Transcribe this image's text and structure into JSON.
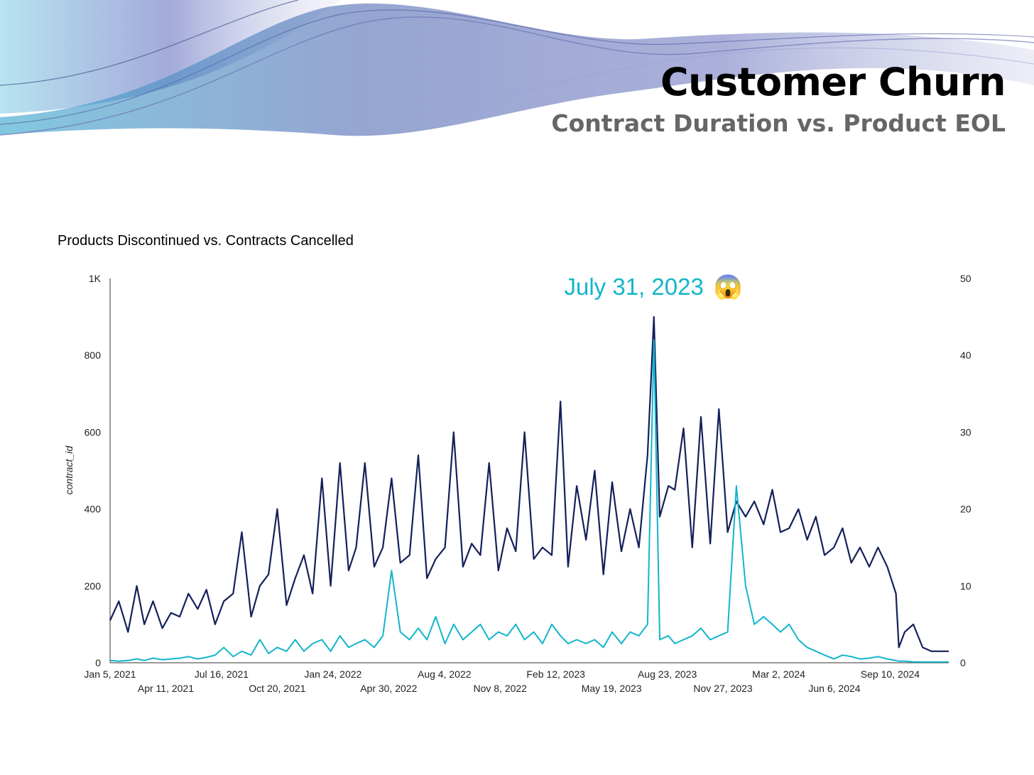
{
  "header": {
    "title": "Customer Churn",
    "subtitle": "Contract Duration vs. Product EOL"
  },
  "colors": {
    "contracts": "#13205A",
    "products": "#12B5CB",
    "accent": "#12B5CB"
  },
  "chart_data": {
    "type": "line",
    "title": "Products Discontinued vs. Contracts Cancelled",
    "ylabel": "contract_id",
    "y2label": "",
    "ylim": [
      0,
      1000
    ],
    "y2lim": [
      0,
      50
    ],
    "y_ticks": [
      "0",
      "200",
      "400",
      "600",
      "800",
      "1K"
    ],
    "y2_ticks": [
      "0",
      "10",
      "20",
      "30",
      "40",
      "50"
    ],
    "x_range": [
      "2021-01-05",
      "2024-12-20"
    ],
    "x_ticks": [
      {
        "date": "2021-01-05",
        "label": "Jan 5, 2021"
      },
      {
        "date": "2021-04-11",
        "label": "Apr 11, 2021"
      },
      {
        "date": "2021-07-16",
        "label": "Jul 16, 2021"
      },
      {
        "date": "2021-10-20",
        "label": "Oct 20, 2021"
      },
      {
        "date": "2022-01-24",
        "label": "Jan 24, 2022"
      },
      {
        "date": "2022-04-30",
        "label": "Apr 30, 2022"
      },
      {
        "date": "2022-08-04",
        "label": "Aug 4, 2022"
      },
      {
        "date": "2022-11-08",
        "label": "Nov 8, 2022"
      },
      {
        "date": "2023-02-12",
        "label": "Feb 12, 2023"
      },
      {
        "date": "2023-05-19",
        "label": "May 19, 2023"
      },
      {
        "date": "2023-08-23",
        "label": "Aug 23, 2023"
      },
      {
        "date": "2023-11-27",
        "label": "Nov 27, 2023"
      },
      {
        "date": "2024-03-02",
        "label": "Mar 2, 2024"
      },
      {
        "date": "2024-06-06",
        "label": "Jun 6, 2024"
      },
      {
        "date": "2024-09-10",
        "label": "Sep 10, 2024"
      }
    ],
    "annotation": {
      "text": "July 31, 2023",
      "emoji": "😱",
      "date": "2023-07-31"
    },
    "series": [
      {
        "axis": "left",
        "x": [
          "2021-01-05",
          "2021-01-20",
          "2021-02-05",
          "2021-02-20",
          "2021-03-05",
          "2021-03-20",
          "2021-04-05",
          "2021-04-20",
          "2021-05-05",
          "2021-05-20",
          "2021-06-05",
          "2021-06-20",
          "2021-07-05",
          "2021-07-20",
          "2021-08-05",
          "2021-08-20",
          "2021-09-05",
          "2021-09-20",
          "2021-10-05",
          "2021-10-20",
          "2021-11-05",
          "2021-11-20",
          "2021-12-05",
          "2021-12-20",
          "2022-01-05",
          "2022-01-20",
          "2022-02-05",
          "2022-02-20",
          "2022-03-05",
          "2022-03-20",
          "2022-04-05",
          "2022-04-20",
          "2022-05-05",
          "2022-05-20",
          "2022-06-05",
          "2022-06-20",
          "2022-07-05",
          "2022-07-20",
          "2022-08-05",
          "2022-08-20",
          "2022-09-05",
          "2022-09-20",
          "2022-10-05",
          "2022-10-20",
          "2022-11-05",
          "2022-11-20",
          "2022-12-05",
          "2022-12-20",
          "2023-01-05",
          "2023-01-20",
          "2023-02-05",
          "2023-02-20",
          "2023-03-05",
          "2023-03-20",
          "2023-04-05",
          "2023-04-20",
          "2023-05-05",
          "2023-05-20",
          "2023-06-05",
          "2023-06-20",
          "2023-07-05",
          "2023-07-20",
          "2023-07-31",
          "2023-08-10",
          "2023-08-25",
          "2023-09-05",
          "2023-09-20",
          "2023-10-05",
          "2023-10-20",
          "2023-11-05",
          "2023-11-20",
          "2023-12-05",
          "2023-12-20",
          "2024-01-05",
          "2024-01-20",
          "2024-02-05",
          "2024-02-20",
          "2024-03-05",
          "2024-03-20",
          "2024-04-05",
          "2024-04-20",
          "2024-05-05",
          "2024-05-20",
          "2024-06-05",
          "2024-06-20",
          "2024-07-05",
          "2024-07-20",
          "2024-08-05",
          "2024-08-20",
          "2024-09-05",
          "2024-09-20",
          "2024-09-25",
          "2024-10-05",
          "2024-10-20",
          "2024-11-05",
          "2024-11-20",
          "2024-12-05",
          "2024-12-20"
        ],
        "y": [
          110,
          160,
          80,
          200,
          100,
          160,
          90,
          130,
          120,
          180,
          140,
          190,
          100,
          160,
          180,
          340,
          120,
          200,
          230,
          400,
          150,
          220,
          280,
          180,
          480,
          200,
          520,
          240,
          300,
          520,
          250,
          300,
          480,
          260,
          280,
          540,
          220,
          270,
          300,
          600,
          250,
          310,
          280,
          520,
          240,
          350,
          290,
          600,
          270,
          300,
          280,
          680,
          250,
          460,
          320,
          500,
          230,
          470,
          290,
          400,
          300,
          540,
          900,
          380,
          460,
          450,
          610,
          300,
          640,
          310,
          660,
          340,
          420,
          380,
          420,
          360,
          450,
          340,
          350,
          400,
          320,
          380,
          280,
          300,
          350,
          260,
          300,
          250,
          300,
          250,
          180,
          40,
          80,
          100,
          40,
          30,
          30,
          30
        ]
      },
      {
        "axis": "right",
        "x": [
          "2021-01-05",
          "2021-01-20",
          "2021-02-05",
          "2021-02-20",
          "2021-03-05",
          "2021-03-20",
          "2021-04-05",
          "2021-04-20",
          "2021-05-05",
          "2021-05-20",
          "2021-06-05",
          "2021-06-20",
          "2021-07-05",
          "2021-07-20",
          "2021-08-05",
          "2021-08-20",
          "2021-09-05",
          "2021-09-20",
          "2021-10-05",
          "2021-10-20",
          "2021-11-05",
          "2021-11-20",
          "2021-12-05",
          "2021-12-20",
          "2022-01-05",
          "2022-01-20",
          "2022-02-05",
          "2022-02-20",
          "2022-03-05",
          "2022-03-20",
          "2022-04-05",
          "2022-04-20",
          "2022-05-05",
          "2022-05-20",
          "2022-06-05",
          "2022-06-20",
          "2022-07-05",
          "2022-07-20",
          "2022-08-05",
          "2022-08-20",
          "2022-09-05",
          "2022-09-20",
          "2022-10-05",
          "2022-10-20",
          "2022-11-05",
          "2022-11-20",
          "2022-12-05",
          "2022-12-20",
          "2023-01-05",
          "2023-01-20",
          "2023-02-05",
          "2023-02-20",
          "2023-03-05",
          "2023-03-20",
          "2023-04-05",
          "2023-04-20",
          "2023-05-05",
          "2023-05-20",
          "2023-06-05",
          "2023-06-20",
          "2023-07-05",
          "2023-07-20",
          "2023-07-31",
          "2023-08-10",
          "2023-08-25",
          "2023-09-05",
          "2023-09-20",
          "2023-10-05",
          "2023-10-20",
          "2023-11-05",
          "2023-11-20",
          "2023-12-05",
          "2023-12-20",
          "2024-01-05",
          "2024-01-20",
          "2024-02-05",
          "2024-02-20",
          "2024-03-05",
          "2024-03-20",
          "2024-04-05",
          "2024-04-20",
          "2024-05-05",
          "2024-05-20",
          "2024-06-05",
          "2024-06-20",
          "2024-07-05",
          "2024-07-20",
          "2024-08-05",
          "2024-08-20",
          "2024-09-05",
          "2024-09-20",
          "2024-09-25",
          "2024-10-05",
          "2024-10-20",
          "2024-11-05",
          "2024-11-20",
          "2024-12-05",
          "2024-12-20"
        ],
        "y": [
          0.3,
          0.2,
          0.3,
          0.5,
          0.3,
          0.6,
          0.4,
          0.5,
          0.6,
          0.8,
          0.5,
          0.7,
          1.0,
          2.0,
          0.8,
          1.5,
          1.0,
          3.0,
          1.2,
          2.0,
          1.5,
          3.0,
          1.5,
          2.5,
          3.0,
          1.5,
          3.5,
          2.0,
          2.5,
          3.0,
          2.0,
          3.5,
          12.0,
          4.0,
          3.0,
          4.5,
          3.0,
          6.0,
          2.5,
          5.0,
          3.0,
          4.0,
          5.0,
          3.0,
          4.0,
          3.5,
          5.0,
          3.0,
          4.0,
          2.5,
          5.0,
          3.5,
          2.5,
          3.0,
          2.5,
          3.0,
          2.0,
          4.0,
          2.5,
          4.0,
          3.5,
          5.0,
          42.0,
          3.0,
          3.5,
          2.5,
          3.0,
          3.5,
          4.5,
          3.0,
          3.5,
          4.0,
          23.0,
          10.0,
          5.0,
          6.0,
          5.0,
          4.0,
          5.0,
          3.0,
          2.0,
          1.5,
          1.0,
          0.5,
          1.0,
          0.8,
          0.5,
          0.6,
          0.8,
          0.5,
          0.3,
          0.2,
          0.2,
          0.1,
          0.1,
          0.1,
          0.1,
          0.1
        ]
      }
    ]
  }
}
